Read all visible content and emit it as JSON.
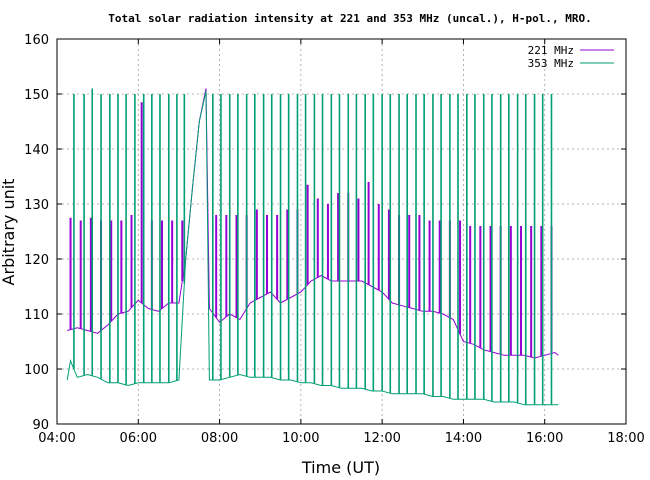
{
  "chart_data": {
    "type": "line",
    "title": "Total solar radiation intensity at 221 and 353 MHz (uncal.), H-pol., MRO.",
    "xlabel": "Time (UT)",
    "ylabel": "Arbitrary unit",
    "xlim": [
      "04:00",
      "18:00"
    ],
    "ylim": [
      90,
      160
    ],
    "x_ticks": [
      "04:00",
      "06:00",
      "08:00",
      "10:00",
      "12:00",
      "14:00",
      "16:00",
      "18:00"
    ],
    "y_ticks": [
      90,
      100,
      110,
      120,
      130,
      140,
      150,
      160
    ],
    "grid": true,
    "legend_position": "top-right",
    "series": [
      {
        "name": "221 MHz",
        "color": "#9400d3",
        "x": [
          "04:15",
          "04:30",
          "04:45",
          "05:00",
          "05:15",
          "05:30",
          "05:45",
          "06:00",
          "06:15",
          "06:30",
          "06:45",
          "07:00",
          "07:10",
          "07:20",
          "07:30",
          "07:40",
          "07:45",
          "08:00",
          "08:15",
          "08:30",
          "08:45",
          "09:00",
          "09:15",
          "09:30",
          "09:45",
          "10:00",
          "10:15",
          "10:30",
          "10:45",
          "11:00",
          "11:15",
          "11:30",
          "11:45",
          "12:00",
          "12:15",
          "12:30",
          "12:45",
          "13:00",
          "13:15",
          "13:30",
          "13:45",
          "14:00",
          "14:15",
          "14:30",
          "14:45",
          "15:00",
          "15:15",
          "15:30",
          "15:45",
          "16:00",
          "16:15",
          "16:20"
        ],
        "y": [
          107,
          107.5,
          107,
          106.5,
          108,
          110,
          110.5,
          112.5,
          111,
          110.5,
          112,
          112,
          120,
          133,
          145,
          151,
          111,
          108.5,
          110,
          109,
          112,
          113,
          114,
          112,
          113,
          114,
          116,
          117,
          116,
          116,
          116,
          116,
          115,
          114,
          112,
          111.5,
          111,
          110.5,
          110.5,
          110,
          109,
          105,
          104.5,
          103.5,
          103,
          102.5,
          102.5,
          102.5,
          102,
          102.5,
          103,
          102.5
        ],
        "spikes": [
          {
            "t": "04:20",
            "peak": 127.5
          },
          {
            "t": "04:35",
            "peak": 127
          },
          {
            "t": "04:50",
            "peak": 127.5
          },
          {
            "t": "05:05",
            "peak": 127
          },
          {
            "t": "05:20",
            "peak": 127
          },
          {
            "t": "05:35",
            "peak": 127
          },
          {
            "t": "05:50",
            "peak": 128
          },
          {
            "t": "06:05",
            "peak": 148.5
          },
          {
            "t": "06:20",
            "peak": 127
          },
          {
            "t": "06:35",
            "peak": 127
          },
          {
            "t": "06:50",
            "peak": 127
          },
          {
            "t": "07:05",
            "peak": 127
          },
          {
            "t": "07:55",
            "peak": 128
          },
          {
            "t": "08:10",
            "peak": 128
          },
          {
            "t": "08:25",
            "peak": 128
          },
          {
            "t": "08:40",
            "peak": 128
          },
          {
            "t": "08:55",
            "peak": 129
          },
          {
            "t": "09:10",
            "peak": 128
          },
          {
            "t": "09:25",
            "peak": 128
          },
          {
            "t": "09:40",
            "peak": 129
          },
          {
            "t": "09:55",
            "peak": 129
          },
          {
            "t": "10:10",
            "peak": 133.5
          },
          {
            "t": "10:25",
            "peak": 131
          },
          {
            "t": "10:40",
            "peak": 130
          },
          {
            "t": "10:55",
            "peak": 132
          },
          {
            "t": "11:10",
            "peak": 132
          },
          {
            "t": "11:25",
            "peak": 131
          },
          {
            "t": "11:40",
            "peak": 134
          },
          {
            "t": "11:55",
            "peak": 130
          },
          {
            "t": "12:10",
            "peak": 129
          },
          {
            "t": "12:25",
            "peak": 128
          },
          {
            "t": "12:40",
            "peak": 128
          },
          {
            "t": "12:55",
            "peak": 128
          },
          {
            "t": "13:10",
            "peak": 127
          },
          {
            "t": "13:25",
            "peak": 127
          },
          {
            "t": "13:40",
            "peak": 127
          },
          {
            "t": "13:55",
            "peak": 127
          },
          {
            "t": "14:10",
            "peak": 126
          },
          {
            "t": "14:25",
            "peak": 126
          },
          {
            "t": "14:40",
            "peak": 126
          },
          {
            "t": "14:55",
            "peak": 126
          },
          {
            "t": "15:10",
            "peak": 126
          },
          {
            "t": "15:25",
            "peak": 126
          },
          {
            "t": "15:40",
            "peak": 126
          },
          {
            "t": "15:55",
            "peak": 126
          },
          {
            "t": "16:10",
            "peak": 126
          }
        ]
      },
      {
        "name": "353 MHz",
        "color": "#009e73",
        "x": [
          "04:15",
          "04:20",
          "04:30",
          "04:45",
          "05:00",
          "05:15",
          "05:30",
          "05:45",
          "06:00",
          "06:15",
          "06:30",
          "06:45",
          "07:00",
          "07:10",
          "07:20",
          "07:30",
          "07:40",
          "07:45",
          "08:00",
          "08:15",
          "08:30",
          "08:45",
          "09:00",
          "09:15",
          "09:30",
          "09:45",
          "10:00",
          "10:15",
          "10:30",
          "10:45",
          "11:00",
          "11:15",
          "11:30",
          "11:45",
          "12:00",
          "12:15",
          "12:30",
          "12:45",
          "13:00",
          "13:15",
          "13:30",
          "13:45",
          "14:00",
          "14:15",
          "14:30",
          "14:45",
          "15:00",
          "15:15",
          "15:30",
          "15:45",
          "16:00",
          "16:15",
          "16:20"
        ],
        "y": [
          98,
          101.5,
          98.5,
          99,
          98.5,
          97.5,
          97.5,
          97,
          97.5,
          97.5,
          97.5,
          97.5,
          98,
          120,
          133,
          145,
          150.5,
          98,
          98,
          98.5,
          99,
          98.5,
          98.5,
          98.5,
          98,
          98,
          97.5,
          97.5,
          97,
          97,
          96.5,
          96.5,
          96.5,
          96,
          96,
          95.5,
          95.5,
          95.5,
          95.5,
          95,
          95,
          94.5,
          94.5,
          94.5,
          94.5,
          94,
          94,
          94,
          93.5,
          93.5,
          93.5,
          93.5,
          93.5
        ],
        "spikes": [
          {
            "t": "04:25",
            "peak": 150
          },
          {
            "t": "04:40",
            "peak": 150
          },
          {
            "t": "04:52",
            "peak": 151
          },
          {
            "t": "05:05",
            "peak": 150
          },
          {
            "t": "05:18",
            "peak": 150
          },
          {
            "t": "05:30",
            "peak": 150
          },
          {
            "t": "05:42",
            "peak": 150
          },
          {
            "t": "05:55",
            "peak": 150
          },
          {
            "t": "06:08",
            "peak": 150
          },
          {
            "t": "06:20",
            "peak": 150
          },
          {
            "t": "06:32",
            "peak": 150
          },
          {
            "t": "06:45",
            "peak": 150
          },
          {
            "t": "06:57",
            "peak": 150
          },
          {
            "t": "07:08",
            "peak": 150
          },
          {
            "t": "07:50",
            "peak": 150
          },
          {
            "t": "08:02",
            "peak": 150
          },
          {
            "t": "08:15",
            "peak": 150
          },
          {
            "t": "08:27",
            "peak": 150
          },
          {
            "t": "08:40",
            "peak": 150
          },
          {
            "t": "08:52",
            "peak": 150
          },
          {
            "t": "09:05",
            "peak": 150
          },
          {
            "t": "09:17",
            "peak": 150
          },
          {
            "t": "09:30",
            "peak": 150
          },
          {
            "t": "09:42",
            "peak": 150
          },
          {
            "t": "09:55",
            "peak": 150
          },
          {
            "t": "10:07",
            "peak": 150
          },
          {
            "t": "10:20",
            "peak": 150
          },
          {
            "t": "10:32",
            "peak": 150
          },
          {
            "t": "10:45",
            "peak": 150
          },
          {
            "t": "10:57",
            "peak": 150
          },
          {
            "t": "11:10",
            "peak": 150
          },
          {
            "t": "11:22",
            "peak": 150
          },
          {
            "t": "11:35",
            "peak": 150
          },
          {
            "t": "11:47",
            "peak": 150
          },
          {
            "t": "12:00",
            "peak": 150
          },
          {
            "t": "12:12",
            "peak": 150
          },
          {
            "t": "12:25",
            "peak": 150
          },
          {
            "t": "12:37",
            "peak": 150
          },
          {
            "t": "12:50",
            "peak": 150
          },
          {
            "t": "13:02",
            "peak": 150
          },
          {
            "t": "13:15",
            "peak": 150
          },
          {
            "t": "13:27",
            "peak": 150
          },
          {
            "t": "13:40",
            "peak": 150
          },
          {
            "t": "13:52",
            "peak": 150
          },
          {
            "t": "14:05",
            "peak": 150
          },
          {
            "t": "14:17",
            "peak": 150
          },
          {
            "t": "14:30",
            "peak": 150
          },
          {
            "t": "14:42",
            "peak": 150
          },
          {
            "t": "14:55",
            "peak": 150
          },
          {
            "t": "15:07",
            "peak": 150
          },
          {
            "t": "15:20",
            "peak": 150
          },
          {
            "t": "15:32",
            "peak": 150
          },
          {
            "t": "15:45",
            "peak": 150
          },
          {
            "t": "15:57",
            "peak": 150
          },
          {
            "t": "16:10",
            "peak": 150
          }
        ]
      }
    ]
  }
}
